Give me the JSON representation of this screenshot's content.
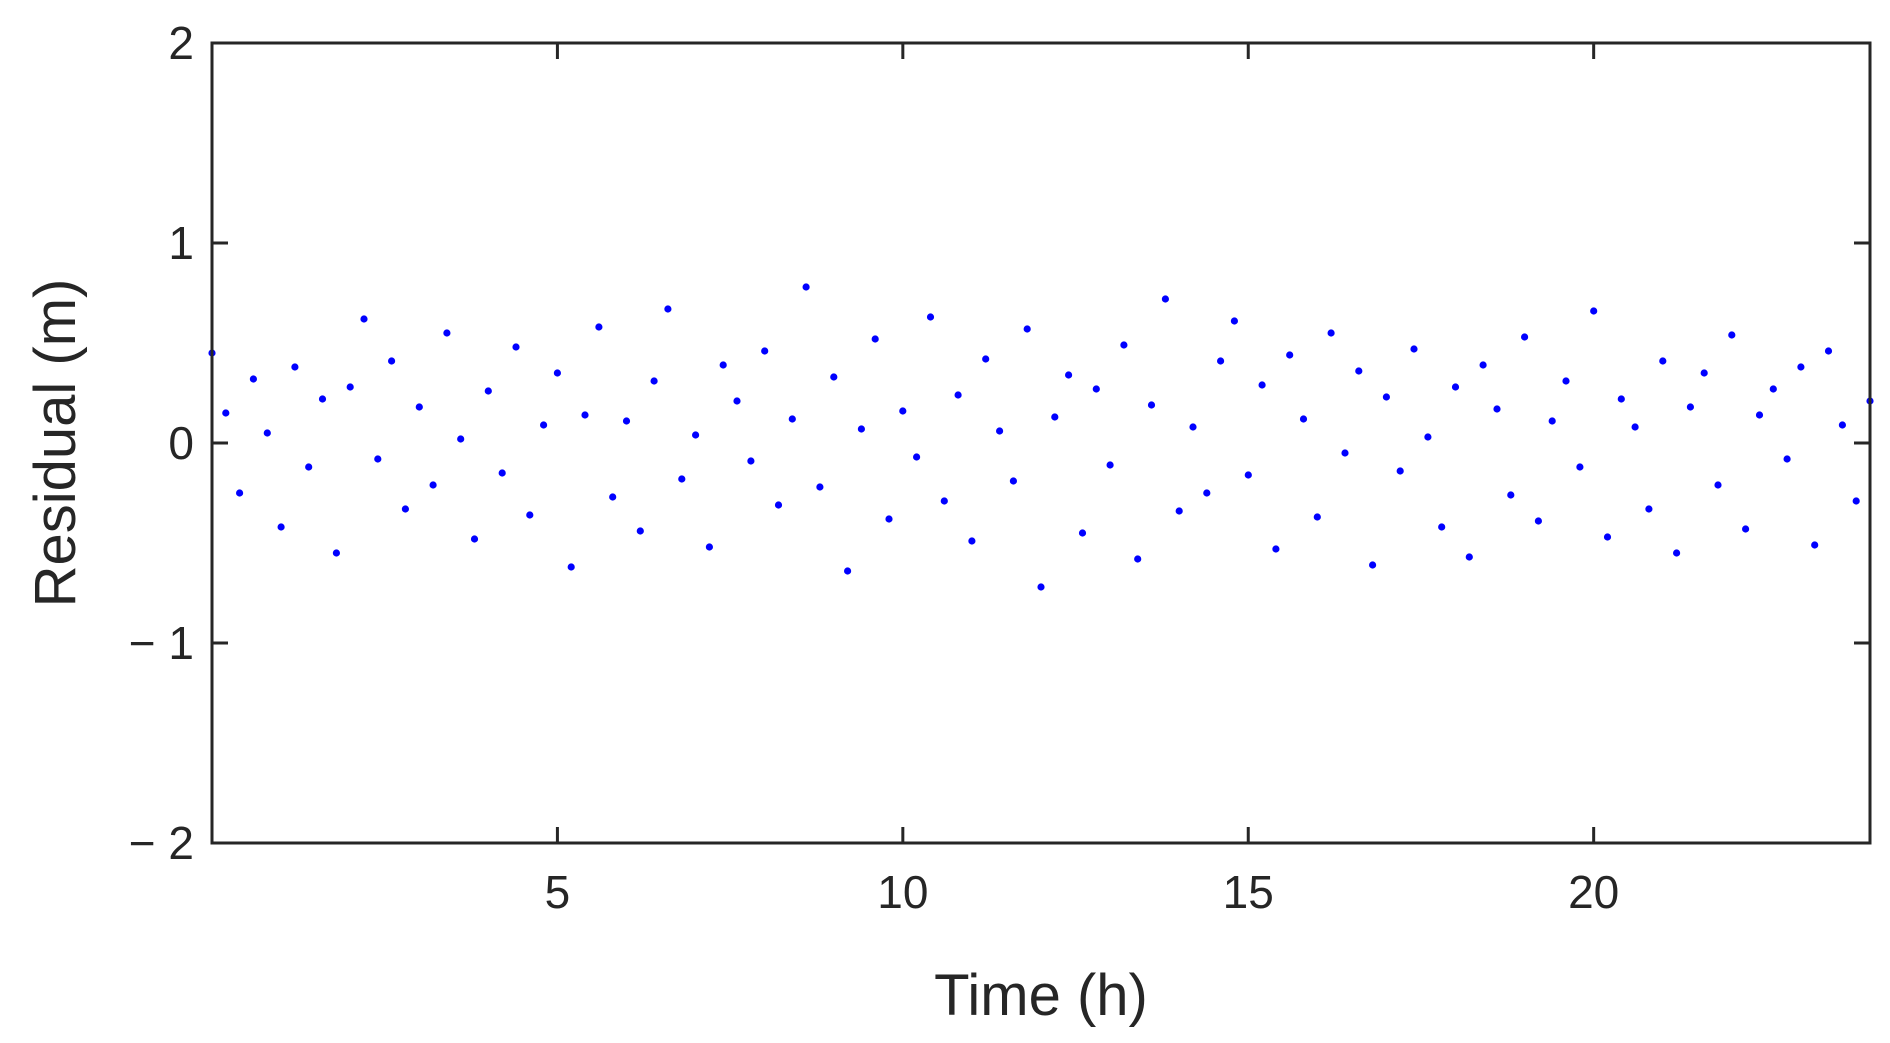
{
  "chart_data": {
    "type": "scatter",
    "title": "",
    "xlabel": "Time (h)",
    "ylabel": "Residual (m)",
    "xlim": [
      0,
      24
    ],
    "ylim": [
      -2,
      2
    ],
    "x_ticks": [
      5,
      10,
      15,
      20
    ],
    "x_tick_labels": [
      "5",
      "10",
      "15",
      "20"
    ],
    "y_ticks": [
      2,
      1,
      0,
      -1,
      -2
    ],
    "y_tick_labels": [
      "2",
      "1",
      "0",
      "− 1",
      "− 2"
    ],
    "grid": false,
    "legend": "none",
    "marker_color": "#0000ff",
    "series": [
      {
        "x": [
          0.0,
          0.2,
          0.4,
          0.6,
          0.8,
          1.0,
          1.2,
          1.4,
          1.6,
          1.8,
          2.0,
          2.2,
          2.4,
          2.6,
          2.8,
          3.0,
          3.2,
          3.4,
          3.6,
          3.8,
          4.0,
          4.2,
          4.4,
          4.6,
          4.8,
          5.0,
          5.2,
          5.4,
          5.6,
          5.8,
          6.0,
          6.2,
          6.4,
          6.6,
          6.8,
          7.0,
          7.2,
          7.4,
          7.6,
          7.8,
          8.0,
          8.2,
          8.4,
          8.6,
          8.8,
          9.0,
          9.2,
          9.4,
          9.6,
          9.8,
          10.0,
          10.2,
          10.4,
          10.6,
          10.8,
          11.0,
          11.2,
          11.4,
          11.6,
          11.8,
          12.0,
          12.2,
          12.4,
          12.6,
          12.8,
          13.0,
          13.2,
          13.4,
          13.6,
          13.8,
          14.0,
          14.2,
          14.4,
          14.6,
          14.8,
          15.0,
          15.2,
          15.4,
          15.6,
          15.8,
          16.0,
          16.2,
          16.4,
          16.6,
          16.8,
          17.0,
          17.2,
          17.4,
          17.6,
          17.8,
          18.0,
          18.2,
          18.4,
          18.6,
          18.8,
          19.0,
          19.2,
          19.4,
          19.6,
          19.8,
          20.0,
          20.2,
          20.4,
          20.6,
          20.8,
          21.0,
          21.2,
          21.4,
          21.6,
          21.8,
          22.0,
          22.2,
          22.4,
          22.6,
          22.8,
          23.0,
          23.2,
          23.4,
          23.6,
          23.8,
          24.0
        ],
        "y": [
          0.45,
          0.15,
          -0.25,
          0.32,
          0.05,
          -0.42,
          0.38,
          -0.12,
          0.22,
          -0.55,
          0.28,
          0.62,
          -0.08,
          0.41,
          -0.33,
          0.18,
          -0.21,
          0.55,
          0.02,
          -0.48,
          0.26,
          -0.15,
          0.48,
          -0.36,
          0.09,
          0.35,
          -0.62,
          0.14,
          0.58,
          -0.27,
          0.11,
          -0.44,
          0.31,
          0.67,
          -0.18,
          0.04,
          -0.52,
          0.39,
          0.21,
          -0.09,
          0.46,
          -0.31,
          0.12,
          0.78,
          -0.22,
          0.33,
          -0.64,
          0.07,
          0.52,
          -0.38,
          0.16,
          -0.07,
          0.63,
          -0.29,
          0.24,
          -0.49,
          0.42,
          0.06,
          -0.19,
          0.57,
          -0.72,
          0.13,
          0.34,
          -0.45,
          0.27,
          -0.11,
          0.49,
          -0.58,
          0.19,
          0.72,
          -0.34,
          0.08,
          -0.25,
          0.41,
          0.61,
          -0.16,
          0.29,
          -0.53,
          0.44,
          0.12,
          -0.37,
          0.55,
          -0.05,
          0.36,
          -0.61,
          0.23,
          -0.14,
          0.47,
          0.03,
          -0.42,
          0.28,
          -0.57,
          0.39,
          0.17,
          -0.26,
          0.53,
          -0.39,
          0.11,
          0.31,
          -0.12,
          0.66,
          -0.47,
          0.22,
          0.08,
          -0.33,
          0.41,
          -0.55,
          0.18,
          0.35,
          -0.21,
          0.54,
          -0.43,
          0.14,
          0.27,
          -0.08,
          0.38,
          -0.51,
          0.46,
          0.09,
          -0.29,
          0.21
        ]
      }
    ]
  }
}
